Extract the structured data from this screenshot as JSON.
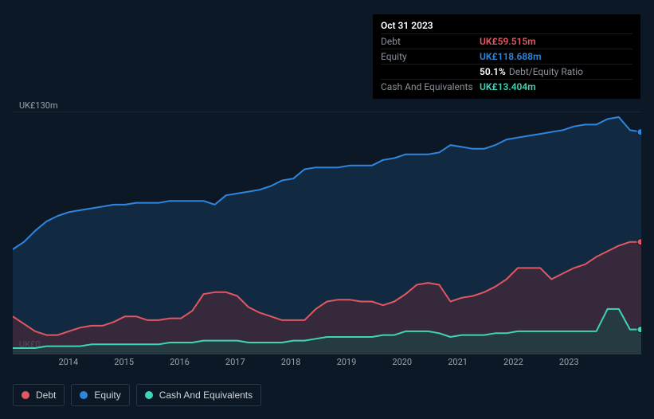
{
  "chart": {
    "type": "area",
    "background_color": "#0d1826",
    "grid_color": "#1b2937",
    "axis_font_color": "#9ba3ac",
    "axis_fontsize": 11,
    "ymin": 0,
    "ymax": 130,
    "ylabels": {
      "top": "UK£130m",
      "bottom": "UK£0"
    },
    "xticks": [
      "2014",
      "2015",
      "2016",
      "2017",
      "2018",
      "2019",
      "2020",
      "2021",
      "2022",
      "2023"
    ],
    "series": {
      "equity": {
        "label": "Equity",
        "color": "#2f86de",
        "fill": "#17395a",
        "fill_opacity": 0.55,
        "line_width": 2,
        "points": [
          56,
          60,
          66,
          71,
          74,
          76,
          77,
          78,
          79,
          80,
          80,
          81,
          81,
          81,
          82,
          82,
          82,
          82,
          80,
          85,
          86,
          87,
          88,
          90,
          93,
          94,
          99,
          100,
          100,
          100,
          101,
          101,
          101,
          104,
          105,
          107,
          107,
          107,
          108,
          112,
          111,
          110,
          110,
          112,
          115,
          116,
          117,
          118,
          119,
          120,
          122,
          123,
          123,
          126,
          127,
          120,
          119
        ]
      },
      "debt": {
        "label": "Debt",
        "color": "#e25762",
        "fill": "#5a2a36",
        "fill_opacity": 0.5,
        "line_width": 2,
        "points": [
          20,
          16,
          12,
          10,
          10,
          12,
          14,
          15,
          15,
          17,
          20,
          20,
          18,
          18,
          19,
          19,
          23,
          32,
          33,
          33,
          31,
          25,
          22,
          20,
          18,
          18,
          18,
          24,
          28,
          29,
          29,
          28,
          28,
          26,
          28,
          32,
          37,
          38,
          37,
          28,
          30,
          31,
          33,
          36,
          40,
          46,
          46,
          46,
          40,
          43,
          46,
          48,
          52,
          55,
          58,
          60,
          60
        ]
      },
      "cash": {
        "label": "Cash And Equivalents",
        "color": "#3fd4b8",
        "fill": "#1a4a46",
        "fill_opacity": 0.55,
        "line_width": 2,
        "points": [
          3,
          3,
          3,
          4,
          4,
          4,
          4,
          5,
          5,
          5,
          5,
          5,
          5,
          5,
          6,
          6,
          6,
          7,
          7,
          7,
          7,
          6,
          6,
          6,
          6,
          7,
          7,
          8,
          9,
          9,
          9,
          9,
          9,
          10,
          10,
          12,
          12,
          12,
          11,
          9,
          10,
          10,
          10,
          11,
          11,
          12,
          12,
          12,
          12,
          12,
          12,
          12,
          12,
          24,
          24,
          13,
          13
        ]
      }
    },
    "end_markers": true
  },
  "tooltip": {
    "date": "Oct 31 2023",
    "rows": [
      {
        "label": "Debt",
        "value": "UK£59.515m",
        "color": "#e25762"
      },
      {
        "label": "Equity",
        "value": "UK£118.688m",
        "color": "#2f86de"
      },
      {
        "label": "",
        "ratio_value": "50.1%",
        "ratio_label": "Debt/Equity Ratio"
      },
      {
        "label": "Cash And Equivalents",
        "value": "UK£13.404m",
        "color": "#3fd4b8"
      }
    ]
  },
  "legend": [
    {
      "label": "Debt",
      "color": "#e25762"
    },
    {
      "label": "Equity",
      "color": "#2f86de"
    },
    {
      "label": "Cash And Equivalents",
      "color": "#3fd4b8"
    }
  ]
}
